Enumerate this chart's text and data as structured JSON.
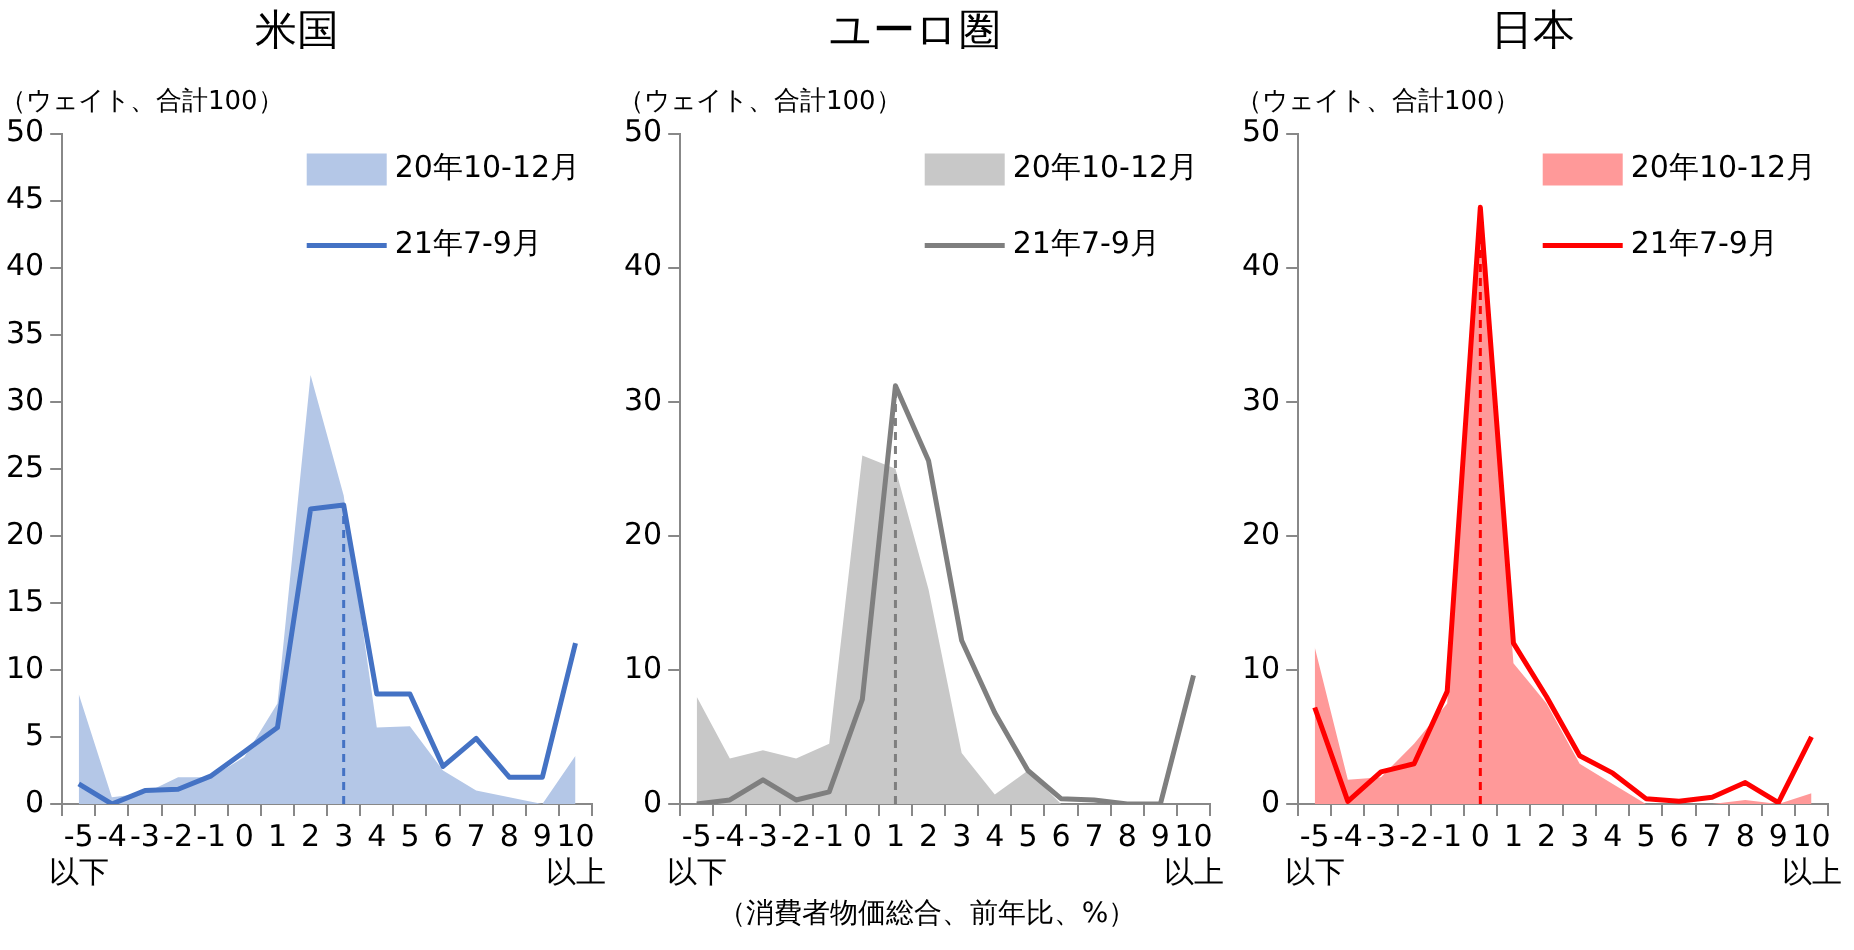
{
  "chart_data": [
    {
      "type": "area",
      "title": "米国",
      "ylabel": "（ウェイト、合計100）",
      "categories": [
        "-5\n以下",
        "-4",
        "-3",
        "-2",
        "-1",
        "0",
        "1",
        "2",
        "3",
        "4",
        "5",
        "6",
        "7",
        "8",
        "9",
        "10\n以上"
      ],
      "series": [
        {
          "name": "20年10-12月",
          "color": "#b4c7e7",
          "values": [
            8.2,
            0.5,
            0.8,
            2,
            2,
            3.5,
            7.5,
            32,
            23,
            5.7,
            5.8,
            2.5,
            1,
            0.5,
            0,
            3.6
          ]
        },
        {
          "name": "21年7-9月",
          "type": "line",
          "color": "#4472c4",
          "values": [
            1.5,
            0,
            1,
            1.1,
            2.1,
            3.9,
            5.7,
            22,
            22.3,
            8.2,
            8.2,
            2.8,
            4.9,
            2,
            2,
            12
          ]
        }
      ],
      "ylim": [
        0,
        50
      ],
      "yticks": [
        0,
        5,
        10,
        15,
        20,
        25,
        30,
        35,
        40,
        45,
        50
      ],
      "ref_lines": [
        {
          "axis": "x",
          "value": "3",
          "color": "#4472c4",
          "line_style": "dashed"
        }
      ],
      "legend": "top right",
      "marker": "none",
      "line_style": "solid",
      "grid": false
    },
    {
      "type": "area",
      "title": "ユーロ圏",
      "ylabel": "（ウェイト、合計100）",
      "categories": [
        "-5\n以下",
        "-4",
        "-3",
        "-2",
        "-1",
        "0",
        "1",
        "2",
        "3",
        "4",
        "5",
        "6",
        "7",
        "8",
        "9",
        "10\n以上"
      ],
      "series": [
        {
          "name": "20年10-12月",
          "color": "#c8c8c8",
          "values": [
            8,
            3.4,
            4,
            3.4,
            4.5,
            26,
            25,
            16,
            3.8,
            0.7,
            2.5,
            0,
            0,
            0,
            0,
            0
          ]
        },
        {
          "name": "21年7-9月",
          "type": "line",
          "color": "#7f7f7f",
          "values": [
            0,
            0.3,
            1.8,
            0.3,
            0.9,
            7.8,
            31.2,
            25.6,
            12.2,
            6.8,
            2.5,
            0.4,
            0.3,
            0,
            0,
            9.6
          ]
        }
      ],
      "ylim": [
        0,
        50
      ],
      "yticks": [
        0,
        10,
        20,
        30,
        40,
        50
      ],
      "ref_lines": [
        {
          "axis": "x",
          "value": "1",
          "color": "#7f7f7f",
          "line_style": "dashed"
        }
      ],
      "annotations": [
        "（消費者物価総合、前年比、%）"
      ],
      "legend": "top right",
      "marker": "none",
      "line_style": "solid",
      "grid": false
    },
    {
      "type": "area",
      "title": "日本",
      "ylabel": "（ウェイト、合計100）",
      "categories": [
        "-5\n以下",
        "-4",
        "-3",
        "-2",
        "-1",
        "0",
        "1",
        "2",
        "3",
        "4",
        "5",
        "6",
        "7",
        "8",
        "9",
        "10\n以上"
      ],
      "series": [
        {
          "name": "20年10-12月",
          "color": "#ff9999",
          "values": [
            11.7,
            1.8,
            2,
            4.5,
            7.5,
            43,
            10.5,
            7.5,
            3,
            1.5,
            0,
            0,
            0,
            0.3,
            0,
            0.8
          ]
        },
        {
          "name": "21年7-9月",
          "type": "line",
          "color": "#ff0000",
          "values": [
            7.2,
            0.2,
            2.4,
            3,
            8.4,
            44.5,
            12,
            8,
            3.6,
            2.3,
            0.4,
            0.2,
            0.5,
            1.6,
            0.1,
            5
          ]
        }
      ],
      "ylim": [
        0,
        50
      ],
      "yticks": [
        0,
        10,
        20,
        30,
        40,
        50
      ],
      "ref_lines": [
        {
          "axis": "x",
          "value": "0",
          "color": "#ff0000",
          "line_style": "dashed"
        }
      ],
      "legend": "top right",
      "marker": "none",
      "line_style": "solid",
      "grid": false
    }
  ]
}
